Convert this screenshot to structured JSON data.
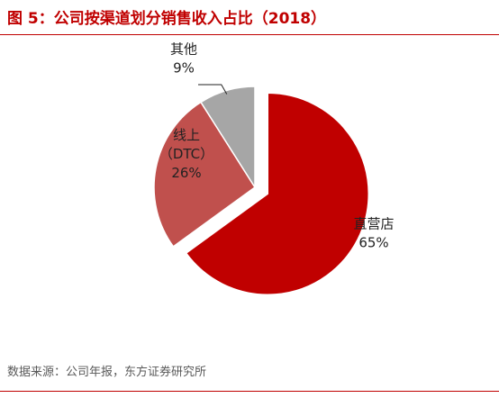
{
  "header": {
    "title": "图 5：公司按渠道划分销售收入占比（2018）"
  },
  "footer": {
    "source": "数据来源：公司年报，东方证券研究所"
  },
  "chart_data": {
    "type": "pie",
    "title": "图 5：公司按渠道划分销售收入占比（2018）",
    "slices": [
      {
        "label": "直营店",
        "value": 65,
        "value_label": "65%",
        "color": "#c00000",
        "exploded": true
      },
      {
        "label": "线上（DTC）",
        "label_lines": [
          "线上",
          "（DTC）"
        ],
        "value": 26,
        "value_label": "26%",
        "color": "#c0504d",
        "exploded": false
      },
      {
        "label": "其他",
        "value": 9,
        "value_label": "9%",
        "color": "#a6a6a6",
        "exploded": false
      }
    ],
    "legend": "none",
    "start_angle_deg": 0,
    "direction": "clockwise"
  }
}
